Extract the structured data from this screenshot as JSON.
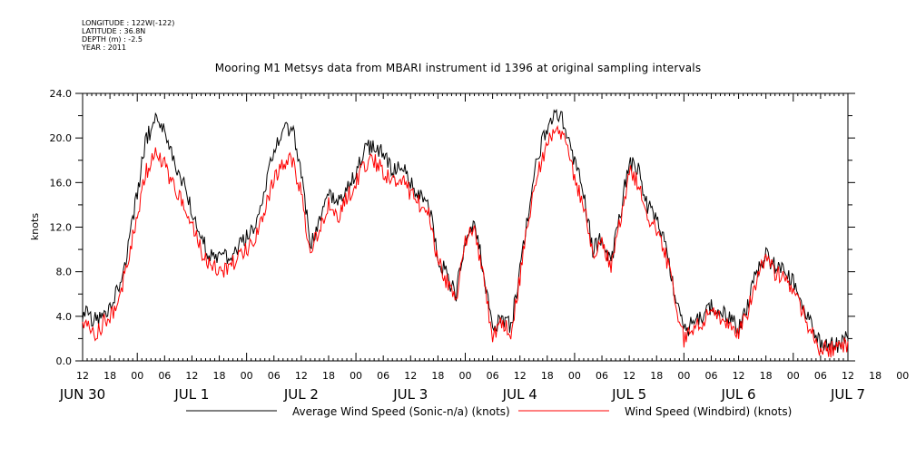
{
  "header": {
    "longitude": "LONGITUDE : 122W(-122)",
    "latitude": "LATITUDE : 36.8N",
    "depth": "DEPTH (m) : -2.5",
    "year": "YEAR : 2011"
  },
  "chart_data": {
    "type": "line",
    "title": "Mooring M1 Metsys data from MBARI instrument id 1396 at original sampling intervals",
    "ylabel": "knots",
    "xlabel": "",
    "ylim": [
      0,
      24
    ],
    "yticks": [
      "0.0",
      "4.0",
      "8.0",
      "12.0",
      "16.0",
      "20.0",
      "24.0"
    ],
    "xlim_hours": [
      0,
      168
    ],
    "x_unit": "hours since JUN 30 12:00",
    "hour_tick_labels": [
      "12",
      "18",
      "00",
      "06",
      "12",
      "18",
      "00",
      "06",
      "12",
      "18",
      "00",
      "06",
      "12",
      "18",
      "00",
      "06",
      "12",
      "18",
      "00",
      "06",
      "12",
      "18",
      "00",
      "06",
      "12",
      "18",
      "00",
      "06",
      "12",
      "18",
      "00",
      "06",
      "12"
    ],
    "day_labels": [
      "JUN 30",
      "JUL  1",
      "JUL  2",
      "JUL  3",
      "JUL  4",
      "JUL  5",
      "JUL  6",
      "JUL  7"
    ],
    "grid": false,
    "legend_position": "bottom",
    "series": [
      {
        "name": "Average Wind Speed (Sonic-n/a) (knots)",
        "color": "#000000",
        "knots": [
          [
            0,
            4.5
          ],
          [
            3,
            3.5
          ],
          [
            6,
            5
          ],
          [
            8,
            6.5
          ],
          [
            10,
            10
          ],
          [
            12,
            15
          ],
          [
            14,
            20
          ],
          [
            16,
            21.5
          ],
          [
            18,
            20.5
          ],
          [
            20,
            18
          ],
          [
            22,
            16
          ],
          [
            24,
            13.5
          ],
          [
            26,
            11
          ],
          [
            28,
            9.5
          ],
          [
            30,
            9
          ],
          [
            32,
            9.5
          ],
          [
            34,
            10
          ],
          [
            36,
            11
          ],
          [
            38,
            12
          ],
          [
            40,
            15
          ],
          [
            42,
            19
          ],
          [
            44,
            20.5
          ],
          [
            46,
            21
          ],
          [
            48,
            17
          ],
          [
            50,
            10.5
          ],
          [
            52,
            12.5
          ],
          [
            54,
            15
          ],
          [
            56,
            14
          ],
          [
            58,
            15.5
          ],
          [
            60,
            17
          ],
          [
            62,
            19
          ],
          [
            64,
            19.5
          ],
          [
            66,
            18.5
          ],
          [
            68,
            17
          ],
          [
            70,
            17.5
          ],
          [
            72,
            16
          ],
          [
            74,
            15
          ],
          [
            76,
            14
          ],
          [
            78,
            9.5
          ],
          [
            80,
            7.5
          ],
          [
            82,
            6
          ],
          [
            84,
            11
          ],
          [
            86,
            12.5
          ],
          [
            88,
            8
          ],
          [
            90,
            2.5
          ],
          [
            92,
            4
          ],
          [
            94,
            3
          ],
          [
            96,
            8
          ],
          [
            98,
            14
          ],
          [
            100,
            18.5
          ],
          [
            102,
            21
          ],
          [
            104,
            22.5
          ],
          [
            106,
            21
          ],
          [
            108,
            18
          ],
          [
            110,
            15
          ],
          [
            112,
            10
          ],
          [
            114,
            11
          ],
          [
            116,
            9
          ],
          [
            118,
            13
          ],
          [
            120,
            18
          ],
          [
            122,
            17
          ],
          [
            124,
            14
          ],
          [
            126,
            13
          ],
          [
            128,
            10
          ],
          [
            130,
            6
          ],
          [
            132,
            2.5
          ],
          [
            134,
            3.5
          ],
          [
            136,
            4
          ],
          [
            138,
            5
          ],
          [
            140,
            4.5
          ],
          [
            142,
            4
          ],
          [
            144,
            3
          ],
          [
            146,
            5
          ],
          [
            148,
            8
          ],
          [
            150,
            9.5
          ],
          [
            152,
            8.5
          ],
          [
            154,
            8
          ],
          [
            156,
            7
          ],
          [
            158,
            5
          ],
          [
            160,
            3
          ],
          [
            162,
            1.5
          ],
          [
            164,
            1.5
          ],
          [
            166,
            1.5
          ],
          [
            168,
            2
          ]
        ]
      },
      {
        "name": "Wind Speed (Windbird) (knots)",
        "color": "#ff0000",
        "knots": [
          [
            0,
            3.5
          ],
          [
            3,
            2.5
          ],
          [
            6,
            4
          ],
          [
            8,
            5.5
          ],
          [
            10,
            9
          ],
          [
            12,
            13
          ],
          [
            14,
            17
          ],
          [
            16,
            18.5
          ],
          [
            18,
            17.5
          ],
          [
            20,
            15.5
          ],
          [
            22,
            14
          ],
          [
            24,
            12
          ],
          [
            26,
            10
          ],
          [
            28,
            8.5
          ],
          [
            30,
            8
          ],
          [
            32,
            8.5
          ],
          [
            34,
            9
          ],
          [
            36,
            10
          ],
          [
            38,
            11
          ],
          [
            40,
            13.5
          ],
          [
            42,
            16.5
          ],
          [
            44,
            17.5
          ],
          [
            46,
            18
          ],
          [
            48,
            15
          ],
          [
            50,
            9.5
          ],
          [
            52,
            12
          ],
          [
            54,
            14
          ],
          [
            56,
            13
          ],
          [
            58,
            14.5
          ],
          [
            60,
            16
          ],
          [
            62,
            17.5
          ],
          [
            64,
            18
          ],
          [
            66,
            17
          ],
          [
            68,
            16
          ],
          [
            70,
            16.5
          ],
          [
            72,
            15
          ],
          [
            74,
            14
          ],
          [
            76,
            13
          ],
          [
            78,
            9
          ],
          [
            80,
            7
          ],
          [
            82,
            5.5
          ],
          [
            84,
            10.5
          ],
          [
            86,
            12
          ],
          [
            88,
            7.5
          ],
          [
            90,
            2
          ],
          [
            92,
            3.5
          ],
          [
            94,
            2.5
          ],
          [
            96,
            7.5
          ],
          [
            98,
            13
          ],
          [
            100,
            17
          ],
          [
            102,
            19.5
          ],
          [
            104,
            21
          ],
          [
            106,
            19.5
          ],
          [
            108,
            16.5
          ],
          [
            110,
            14
          ],
          [
            112,
            9.5
          ],
          [
            114,
            10.5
          ],
          [
            116,
            8.5
          ],
          [
            118,
            12.5
          ],
          [
            120,
            17
          ],
          [
            122,
            16
          ],
          [
            124,
            13
          ],
          [
            126,
            12
          ],
          [
            128,
            9.5
          ],
          [
            130,
            5.5
          ],
          [
            132,
            2
          ],
          [
            134,
            3
          ],
          [
            136,
            3.5
          ],
          [
            138,
            4.5
          ],
          [
            140,
            4
          ],
          [
            142,
            3.5
          ],
          [
            144,
            2.5
          ],
          [
            146,
            4.5
          ],
          [
            148,
            7.5
          ],
          [
            150,
            9
          ],
          [
            152,
            8
          ],
          [
            154,
            7.5
          ],
          [
            156,
            6.5
          ],
          [
            158,
            4.5
          ],
          [
            160,
            2.5
          ],
          [
            162,
            1
          ],
          [
            164,
            1
          ],
          [
            166,
            1
          ],
          [
            168,
            1.5
          ]
        ]
      }
    ]
  }
}
